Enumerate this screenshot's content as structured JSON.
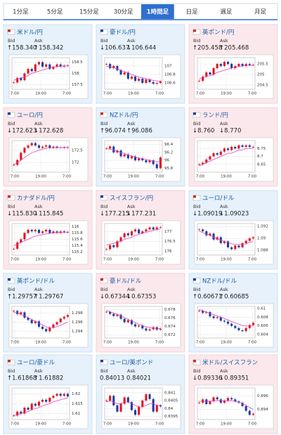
{
  "tabs": {
    "items": [
      "1分足",
      "5分足",
      "15分足",
      "30分足",
      "1時間足",
      "日足",
      "週足",
      "月足"
    ],
    "active": 4
  },
  "cards": [
    {
      "name": "米ドル/円",
      "color": "#e6f1fb",
      "bid_label": "Bid",
      "ask_label": "Ask",
      "bid": "↑158.340",
      "ask": "↑158.342",
      "chart": {
        "ylim": [
          157.3,
          158.7
        ],
        "yticks": [
          158.5,
          158,
          157.5
        ],
        "xticks": [
          "7:00",
          "19:00",
          "7:00"
        ],
        "close": [
          157.6,
          157.8,
          157.7,
          158.0,
          158.2,
          158.1,
          158.4,
          158.5,
          158.3,
          158.4,
          158.2,
          158.3,
          158.4,
          158.3,
          158.35,
          158.34
        ],
        "ma": [
          157.7,
          157.75,
          157.8,
          157.85,
          157.9,
          158.0,
          158.05,
          158.1,
          158.15,
          158.2,
          158.25,
          158.28,
          158.3,
          158.32,
          158.33,
          158.33
        ]
      }
    },
    {
      "name": "豪ドル/円",
      "color": "#e6f1fb",
      "bid_label": "Bid",
      "ask_label": "Ask",
      "bid": "↓106.637",
      "ask": "↓106.644",
      "chart": {
        "ylim": [
          106.45,
          107.2
        ],
        "yticks": [
          107,
          106.8,
          106.6
        ],
        "xticks": [
          "7:00",
          "19:00",
          "7:00"
        ],
        "close": [
          107.05,
          106.95,
          107.0,
          106.9,
          106.8,
          106.85,
          106.7,
          106.75,
          106.65,
          106.7,
          106.6,
          106.68,
          106.62,
          106.58,
          106.6,
          106.637
        ],
        "ma": [
          107.0,
          106.98,
          106.96,
          106.93,
          106.9,
          106.87,
          106.84,
          106.8,
          106.77,
          106.74,
          106.72,
          106.7,
          106.68,
          106.66,
          106.65,
          106.64
        ]
      }
    },
    {
      "name": "英ポンド/円",
      "color": "#fbe8ec",
      "bid_label": "Bid",
      "ask_label": "Ask",
      "bid": "↑205.458",
      "ask": "↑205.468",
      "chart": {
        "ylim": [
          204.3,
          205.8
        ],
        "yticks": [
          205.5,
          205,
          204.5
        ],
        "xticks": [
          "7:00",
          "19:00",
          "7:00"
        ],
        "close": [
          204.7,
          204.9,
          205.1,
          205.0,
          205.3,
          205.5,
          205.4,
          205.6,
          205.5,
          205.3,
          205.4,
          205.5,
          205.4,
          205.5,
          205.45,
          205.458
        ],
        "ma": [
          204.8,
          204.85,
          204.9,
          204.95,
          205.0,
          205.1,
          205.15,
          205.2,
          205.25,
          205.3,
          205.35,
          205.38,
          205.4,
          205.42,
          205.43,
          205.44
        ]
      }
    },
    {
      "name": "ユーロ/円",
      "color": "#fbe8ec",
      "bid_label": "Bid",
      "ask_label": "Ask",
      "bid": "↓172.623",
      "ask": "↓172.628",
      "chart": {
        "ylim": [
          171.6,
          172.9
        ],
        "yticks": [
          172.5,
          172
        ],
        "xticks": [
          "7:00",
          "19:00",
          "7:00"
        ],
        "close": [
          171.9,
          172.1,
          172.4,
          172.6,
          172.7,
          172.8,
          172.7,
          172.6,
          172.65,
          172.7,
          172.6,
          172.65,
          172.6,
          172.62,
          172.6,
          172.623
        ],
        "ma": [
          171.9,
          172.0,
          172.1,
          172.2,
          172.3,
          172.4,
          172.45,
          172.5,
          172.55,
          172.58,
          172.6,
          172.6,
          172.61,
          172.61,
          172.62,
          172.62
        ]
      }
    },
    {
      "name": "NZドル/円",
      "color": "#e6f1fb",
      "bid_label": "Bid",
      "ask_label": "Ask",
      "bid": "↑96.074",
      "ask": "↑96.086",
      "chart": {
        "ylim": [
          95.7,
          96.5
        ],
        "yticks": [
          96.4,
          96.2,
          96,
          95.8
        ],
        "xticks": [
          "7:00",
          "19:00",
          "7:00"
        ],
        "close": [
          96.3,
          96.35,
          96.2,
          96.25,
          96.1,
          96.15,
          96.05,
          96.1,
          96.0,
          96.05,
          96.0,
          95.95,
          96.0,
          95.9,
          95.8,
          96.074
        ],
        "ma": [
          96.3,
          96.28,
          96.26,
          96.23,
          96.2,
          96.17,
          96.14,
          96.11,
          96.08,
          96.06,
          96.04,
          96.02,
          96.0,
          95.98,
          95.96,
          95.97
        ]
      }
    },
    {
      "name": "ランド/円",
      "color": "#fbe8ec",
      "bid_label": "Bid",
      "ask_label": "Ask",
      "bid": "↓8.760",
      "ask": "↓8.770",
      "chart": {
        "ylim": [
          8.6,
          8.8
        ],
        "yticks": [
          8.75,
          8.7,
          8.65
        ],
        "xticks": [
          "7:00",
          "19:00",
          "7:00"
        ],
        "close": [
          8.65,
          8.66,
          8.68,
          8.7,
          8.72,
          8.71,
          8.73,
          8.75,
          8.74,
          8.76,
          8.75,
          8.77,
          8.76,
          8.77,
          8.76,
          8.76
        ],
        "ma": [
          8.64,
          8.65,
          8.66,
          8.67,
          8.68,
          8.69,
          8.7,
          8.71,
          8.72,
          8.72,
          8.73,
          8.74,
          8.74,
          8.75,
          8.75,
          8.75
        ]
      }
    },
    {
      "name": "カナダドル/円",
      "color": "#fbe8ec",
      "bid_label": "Bid",
      "ask_label": "Ask",
      "bid": "↓115.830",
      "ask": "↓115.845",
      "chart": {
        "ylim": [
          115.1,
          116.1
        ],
        "yticks": [
          116,
          115.8,
          115.6,
          115.4,
          115.2
        ],
        "xticks": [
          "7:00",
          "19:00",
          "7:00"
        ],
        "close": [
          115.3,
          115.5,
          115.6,
          115.8,
          115.9,
          115.85,
          115.9,
          115.8,
          115.85,
          115.9,
          115.8,
          115.85,
          115.8,
          115.85,
          115.83,
          115.83
        ],
        "ma": [
          115.4,
          115.45,
          115.5,
          115.55,
          115.6,
          115.65,
          115.7,
          115.72,
          115.75,
          115.77,
          115.79,
          115.8,
          115.81,
          115.82,
          115.82,
          115.83
        ]
      }
    },
    {
      "name": "スイスフラン/円",
      "color": "#fbe8ec",
      "bid_label": "Bid",
      "ask_label": "Ask",
      "bid": "↓177.215",
      "ask": "↓177.231",
      "chart": {
        "ylim": [
          175.8,
          177.4
        ],
        "yticks": [
          177,
          176.5,
          176
        ],
        "xticks": [
          "7:00",
          "19:00",
          "7:00"
        ],
        "close": [
          176.1,
          176.3,
          176.2,
          176.5,
          176.7,
          176.9,
          176.8,
          177.0,
          177.1,
          176.9,
          177.0,
          177.1,
          177.2,
          177.1,
          177.2,
          177.215
        ],
        "ma": [
          176.3,
          176.35,
          176.4,
          176.45,
          176.5,
          176.6,
          176.65,
          176.7,
          176.8,
          176.85,
          176.9,
          176.95,
          177.0,
          177.05,
          177.1,
          177.12
        ]
      }
    },
    {
      "name": "ユーロ/ドル",
      "color": "#e6f1fb",
      "bid_label": "Bid",
      "ask_label": "Ask",
      "bid": "↓1.09019",
      "ask": "↓1.09023",
      "chart": {
        "ylim": [
          1.0872,
          1.0925
        ],
        "yticks": [
          1.092,
          1.09,
          1.088
        ],
        "xticks": [
          "7:00",
          "19:00",
          "7:00"
        ],
        "close": [
          1.0915,
          1.0912,
          1.0905,
          1.0908,
          1.0898,
          1.0902,
          1.0892,
          1.0895,
          1.0885,
          1.0882,
          1.0888,
          1.0885,
          1.0892,
          1.0896,
          1.09,
          1.09019
        ],
        "ma": [
          1.0912,
          1.091,
          1.0907,
          1.0905,
          1.0902,
          1.09,
          1.0897,
          1.0895,
          1.0893,
          1.0891,
          1.089,
          1.089,
          1.089,
          1.0891,
          1.0893,
          1.0895
        ]
      }
    },
    {
      "name": "英ポンド/ドル",
      "color": "#e6f1fb",
      "bid_label": "Bid",
      "ask_label": "Ask",
      "bid": "↑1.29757",
      "ask": "↑1.29767",
      "chart": {
        "ylim": [
          1.2925,
          1.2995
        ],
        "yticks": [
          1.298,
          1.296,
          1.294
        ],
        "xticks": [
          "7:00",
          "19:00",
          "7:00"
        ],
        "close": [
          1.2985,
          1.2978,
          1.2982,
          1.297,
          1.2965,
          1.2958,
          1.2962,
          1.295,
          1.2945,
          1.294,
          1.2948,
          1.2955,
          1.296,
          1.2968,
          1.2972,
          1.29757
        ],
        "ma": [
          1.2982,
          1.298,
          1.2977,
          1.2974,
          1.297,
          1.2966,
          1.2962,
          1.2958,
          1.2954,
          1.295,
          1.2948,
          1.2948,
          1.295,
          1.2953,
          1.2957,
          1.296
        ]
      }
    },
    {
      "name": "豪ドル/ドル",
      "color": "#fbe8ec",
      "bid_label": "Bid",
      "ask_label": "Ask",
      "bid": "↓0.67344",
      "ask": "↓0.67353",
      "chart": {
        "ylim": [
          0.6712,
          0.6788
        ],
        "yticks": [
          0.678,
          0.676,
          0.674,
          0.672
        ],
        "xticks": [
          "7:00",
          "19:00",
          "7:00"
        ],
        "close": [
          0.6775,
          0.677,
          0.6765,
          0.6768,
          0.6758,
          0.675,
          0.6755,
          0.6745,
          0.674,
          0.6742,
          0.6735,
          0.673,
          0.6733,
          0.6738,
          0.6732,
          0.67344
        ],
        "ma": [
          0.6778,
          0.6775,
          0.6772,
          0.6769,
          0.6765,
          0.6761,
          0.6757,
          0.6753,
          0.6749,
          0.6745,
          0.6742,
          0.6739,
          0.6737,
          0.6736,
          0.6735,
          0.6735
        ]
      }
    },
    {
      "name": "NZドル/ドル",
      "color": "#e6f1fb",
      "bid_label": "Bid",
      "ask_label": "Ask",
      "bid": "↑0.60671",
      "ask": "↑0.60685",
      "chart": {
        "ylim": [
          0.6032,
          0.6105
        ],
        "yticks": [
          0.61,
          0.608,
          0.606,
          0.604
        ],
        "xticks": [
          "7:00",
          "19:00",
          "7:00"
        ],
        "close": [
          0.6095,
          0.609,
          0.6092,
          0.6082,
          0.6078,
          0.608,
          0.6072,
          0.607,
          0.6065,
          0.606,
          0.6055,
          0.605,
          0.6048,
          0.6055,
          0.6062,
          0.60671
        ],
        "ma": [
          0.6098,
          0.6095,
          0.6092,
          0.6089,
          0.6086,
          0.6083,
          0.608,
          0.6077,
          0.6074,
          0.607,
          0.6067,
          0.6064,
          0.6061,
          0.606,
          0.606,
          0.606
        ]
      }
    },
    {
      "name": "ユーロ/豪ドル",
      "color": "#e6f1fb",
      "bid_label": "Bid",
      "ask_label": "Ask",
      "bid": "↑1.61868",
      "ask": "↑1.61882",
      "chart": {
        "ylim": [
          1.607,
          1.623
        ],
        "yticks": [
          1.62,
          1.615,
          1.61
        ],
        "xticks": [
          "7:00",
          "19:00",
          "7:00"
        ],
        "close": [
          1.609,
          1.611,
          1.61,
          1.613,
          1.612,
          1.615,
          1.614,
          1.616,
          1.617,
          1.616,
          1.618,
          1.619,
          1.62,
          1.619,
          1.62,
          1.61868
        ],
        "ma": [
          1.609,
          1.6095,
          1.61,
          1.6105,
          1.611,
          1.612,
          1.6125,
          1.613,
          1.614,
          1.6145,
          1.615,
          1.616,
          1.6165,
          1.617,
          1.6175,
          1.618
        ]
      }
    },
    {
      "name": "ユーロ/英ポンド",
      "color": "#e6f1fb",
      "bid_label": "Bid",
      "ask_label": "Ask",
      "bid": "0.84013",
      "ask": "0.84021",
      "chart": {
        "ylim": [
          0.8393,
          0.8413
        ],
        "yticks": [
          0.841,
          0.8405,
          0.84,
          0.8395
        ],
        "xticks": [
          "7:00",
          "19:00",
          "7:00"
        ],
        "close": [
          0.8405,
          0.8408,
          0.8402,
          0.8398,
          0.8403,
          0.8407,
          0.8404,
          0.8399,
          0.8396,
          0.8401,
          0.8405,
          0.8409,
          0.8406,
          0.8398,
          0.8402,
          0.84013
        ],
        "ma": [
          0.8404,
          0.8405,
          0.8404,
          0.8403,
          0.8403,
          0.8404,
          0.8404,
          0.8403,
          0.8402,
          0.8401,
          0.8401,
          0.8402,
          0.8403,
          0.8403,
          0.8402,
          0.8402
        ]
      }
    },
    {
      "name": "米ドル/スイスフラン",
      "color": "#fbe8ec",
      "bid_label": "Bid",
      "ask_label": "Ask",
      "bid": "↓0.89336",
      "ask": "↓0.89351",
      "chart": {
        "ylim": [
          0.8925,
          0.8972
        ],
        "yticks": [
          0.896,
          0.894
        ],
        "xticks": [
          "7:00",
          "19:00",
          "7:00"
        ],
        "close": [
          0.895,
          0.8955,
          0.8948,
          0.8952,
          0.8958,
          0.8955,
          0.895,
          0.8953,
          0.8957,
          0.8955,
          0.8952,
          0.895,
          0.8945,
          0.8938,
          0.8932,
          0.89336
        ],
        "ma": [
          0.8952,
          0.8952,
          0.8952,
          0.8952,
          0.8953,
          0.8953,
          0.8953,
          0.8953,
          0.8953,
          0.8953,
          0.8952,
          0.8951,
          0.8949,
          0.8946,
          0.8943,
          0.894
        ]
      }
    }
  ]
}
